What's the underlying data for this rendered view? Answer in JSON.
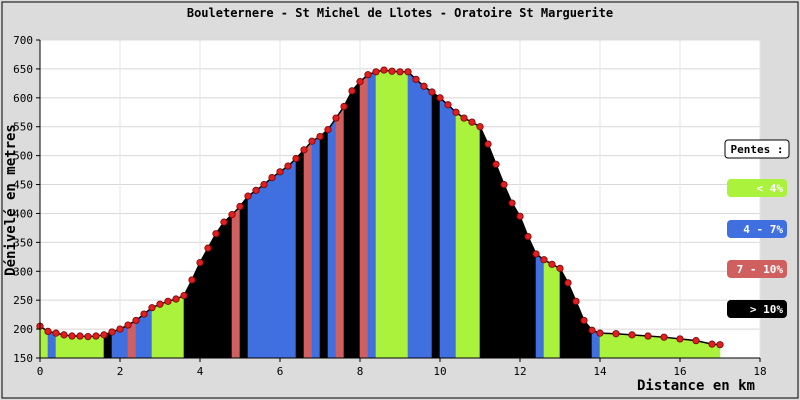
{
  "chart_data": {
    "type": "area",
    "title": "Bouleternere - St Michel de Llotes - Oratoire St Marguerite",
    "xlabel": "Distance en km",
    "ylabel": "Dénivelé en metres",
    "xlim": [
      0,
      18
    ],
    "ylim": [
      150,
      700
    ],
    "xticks": [
      0,
      2,
      4,
      6,
      8,
      10,
      12,
      14,
      16,
      18
    ],
    "yticks": [
      150,
      200,
      250,
      300,
      350,
      400,
      450,
      500,
      550,
      600,
      650,
      700
    ],
    "grid": true,
    "legend_title": "Pentes :",
    "legend": [
      {
        "label": "< 4%",
        "color": "#aaf23c"
      },
      {
        "label": "4 - 7%",
        "color": "#4070e0"
      },
      {
        "label": "7 - 10%",
        "color": "#d06060"
      },
      {
        "label": "> 10%",
        "color": "#000000"
      }
    ],
    "series": [
      {
        "x": [
          0.0,
          0.2,
          0.4,
          0.6,
          0.8,
          1.0,
          1.2,
          1.4,
          1.6,
          1.8,
          2.0,
          2.2,
          2.4,
          2.6,
          2.8,
          3.0,
          3.2,
          3.4,
          3.6,
          3.8,
          4.0,
          4.2,
          4.4,
          4.6,
          4.8,
          5.0,
          5.2,
          5.4,
          5.6,
          5.8,
          6.0,
          6.2,
          6.4,
          6.6,
          6.8,
          7.0,
          7.2,
          7.4,
          7.6,
          7.8,
          8.0,
          8.2,
          8.4,
          8.6,
          8.8,
          9.0,
          9.2,
          9.4,
          9.6,
          9.8,
          10.0,
          10.2,
          10.4,
          10.6,
          10.8,
          11.0,
          11.2,
          11.4,
          11.6,
          11.8,
          12.0,
          12.2,
          12.4,
          12.6,
          12.8,
          13.0,
          13.2,
          13.4,
          13.6,
          13.8,
          14.0,
          14.4,
          14.8,
          15.2,
          15.6,
          16.0,
          16.4,
          16.8,
          17.0
        ],
        "y": [
          205,
          196,
          193,
          190,
          188,
          188,
          187,
          188,
          190,
          195,
          200,
          207,
          215,
          226,
          237,
          243,
          248,
          252,
          258,
          285,
          315,
          340,
          365,
          385,
          398,
          412,
          430,
          440,
          450,
          462,
          472,
          482,
          495,
          510,
          525,
          533,
          545,
          565,
          585,
          612,
          628,
          640,
          645,
          648,
          646,
          645,
          645,
          632,
          620,
          610,
          600,
          588,
          575,
          565,
          558,
          550,
          520,
          485,
          450,
          418,
          395,
          360,
          330,
          320,
          312,
          305,
          280,
          248,
          215,
          198,
          193,
          192,
          190,
          188,
          186,
          183,
          180,
          174,
          173
        ]
      }
    ],
    "segment_slopes": [
      "<4",
      "4-7",
      "<4",
      "<4",
      "<4",
      "<4",
      "<4",
      "<4",
      ">10",
      "4-7",
      "4-7",
      "7-10",
      "4-7",
      "4-7",
      "<4",
      "<4",
      "<4",
      "<4",
      ">10",
      ">10",
      ">10",
      ">10",
      ">10",
      ">10",
      "7-10",
      ">10",
      "4-7",
      "4-7",
      "4-7",
      "4-7",
      "4-7",
      "4-7",
      ">10",
      "7-10",
      "4-7",
      ">10",
      "4-7",
      "7-10",
      ">10",
      ">10",
      "7-10",
      "4-7",
      "<4",
      "<4",
      "<4",
      "<4",
      "4-7",
      "4-7",
      "4-7",
      ">10",
      "4-7",
      "4-7",
      "<4",
      "<4",
      "<4",
      ">10",
      ">10",
      ">10",
      ">10",
      ">10",
      ">10",
      ">10",
      "4-7",
      "<4",
      "<4",
      ">10",
      ">10",
      ">10",
      ">10",
      "4-7",
      "<4",
      "<4",
      "<4",
      "<4",
      "<4",
      "<4",
      "<4",
      "<4"
    ]
  }
}
